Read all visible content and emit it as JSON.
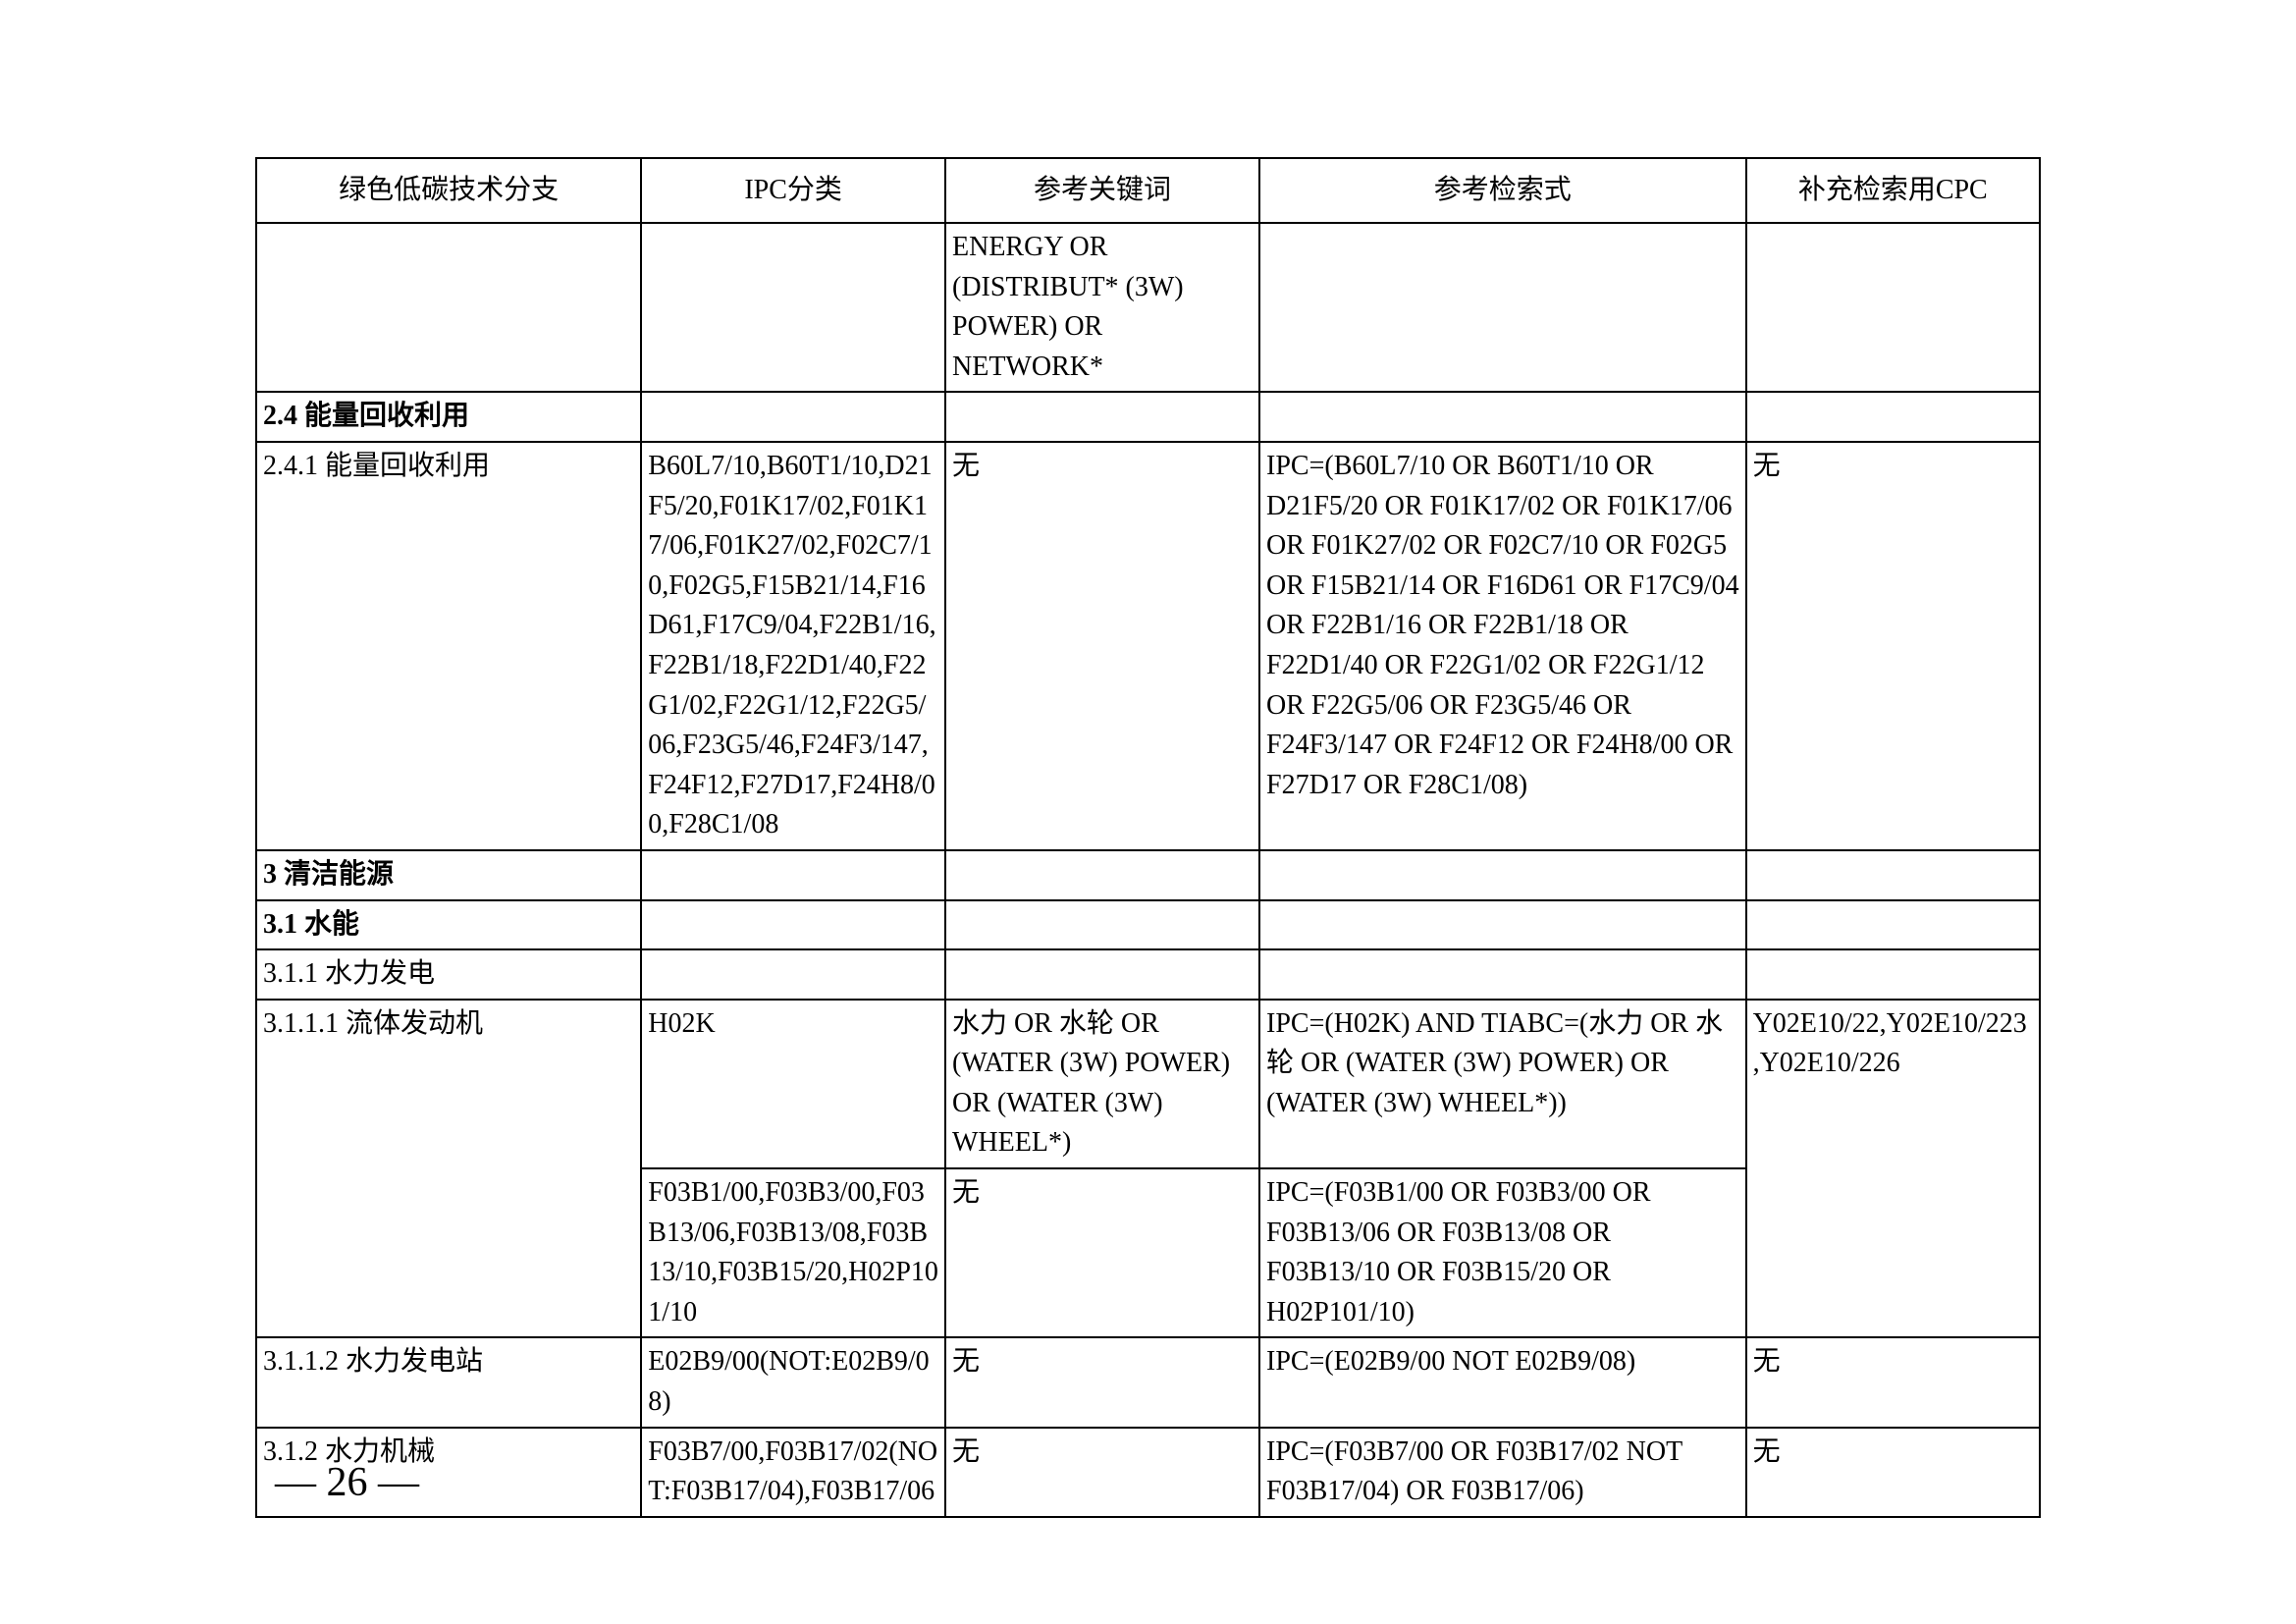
{
  "table": {
    "headers": [
      "绿色低碳技术分支",
      "IPC分类",
      "参考关键词",
      "参考检索式",
      "补充检索用CPC"
    ],
    "colWidths": [
      "380px",
      "300px",
      "310px",
      "480px",
      "290px"
    ],
    "border_color": "#000000",
    "font_size": 28,
    "line_height": 1.45
  },
  "rows": [
    {
      "type": "data",
      "cells": [
        "",
        "",
        "ENERGY OR (DISTRIBUT* (3W) POWER) OR NETWORK*",
        "",
        ""
      ]
    },
    {
      "type": "section",
      "cells": [
        "2.4  能量回收利用",
        "",
        "",
        "",
        ""
      ]
    },
    {
      "type": "data",
      "cells": [
        "2.4.1  能量回收利用",
        "B60L7/10,B60T1/10,D21F5/20,F01K17/02,F01K17/06,F01K27/02,F02C7/10,F02G5,F15B21/14,F16D61,F17C9/04,F22B1/16,F22B1/18,F22D1/40,F22G1/02,F22G1/12,F22G5/06,F23G5/46,F24F3/147,F24F12,F27D17,F24H8/00,F28C1/08",
        "无",
        "IPC=(B60L7/10 OR B60T1/10 OR D21F5/20 OR F01K17/02 OR F01K17/06 OR F01K27/02 OR F02C7/10 OR F02G5 OR F15B21/14 OR F16D61 OR F17C9/04 OR F22B1/16 OR F22B1/18 OR F22D1/40 OR F22G1/02 OR F22G1/12 OR F22G5/06 OR F23G5/46 OR F24F3/147 OR F24F12 OR F24H8/00 OR F27D17 OR F28C1/08)",
        "无"
      ]
    },
    {
      "type": "section",
      "cells": [
        "3  清洁能源",
        "",
        "",
        "",
        ""
      ]
    },
    {
      "type": "section",
      "cells": [
        "3.1  水能",
        "",
        "",
        "",
        ""
      ]
    },
    {
      "type": "data",
      "cells": [
        "3.1.1  水力发电",
        "",
        "",
        "",
        ""
      ]
    },
    {
      "type": "data",
      "rowspan_col0": 2,
      "cells": [
        "3.1.1.1  流体发动机",
        "H02K",
        "水力 OR 水轮 OR (WATER (3W) POWER) OR (WATER (3W) WHEEL*)",
        "IPC=(H02K) AND TIABC=(水力 OR 水轮 OR (WATER (3W) POWER) OR (WATER (3W) WHEEL*))",
        "Y02E10/22,Y02E10/223,Y02E10/226"
      ],
      "rowspan_col4": 2
    },
    {
      "type": "data",
      "skip_col0": true,
      "skip_col4": true,
      "cells": [
        "",
        "F03B1/00,F03B3/00,F03B13/06,F03B13/08,F03B13/10,F03B15/20,H02P101/10",
        "无",
        "IPC=(F03B1/00 OR F03B3/00 OR F03B13/06 OR F03B13/08 OR F03B13/10 OR F03B15/20 OR H02P101/10)",
        ""
      ]
    },
    {
      "type": "data",
      "cells": [
        "3.1.1.2  水力发电站",
        "E02B9/00(NOT:E02B9/08)",
        "无",
        "IPC=(E02B9/00 NOT E02B9/08)",
        "无"
      ]
    },
    {
      "type": "data",
      "cells": [
        "3.1.2  水力机械",
        "F03B7/00,F03B17/02(NOT:F03B17/04),F03B17/06",
        "无",
        "IPC=(F03B7/00 OR F03B17/02 NOT F03B17/04) OR F03B17/06)",
        "无"
      ]
    }
  ],
  "page_number": "— 26 —",
  "background_color": "#ffffff"
}
